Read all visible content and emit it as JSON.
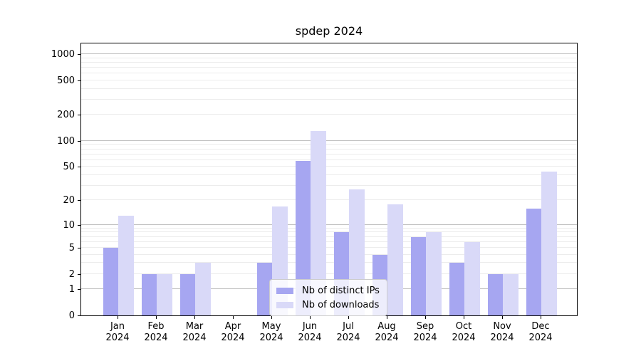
{
  "title": "spdep 2024",
  "colors": {
    "ips_bar": "#a6a6f1",
    "downloads_bar": "#d9d9f8",
    "major_grid": "#c0c0c0",
    "minor_grid": "#ececec",
    "axis": "#000000",
    "legend_border": "#cccccc"
  },
  "chart_data": {
    "type": "bar",
    "title": "spdep 2024",
    "categories": [
      "Jan",
      "Feb",
      "Mar",
      "Apr",
      "May",
      "Jun",
      "Jul",
      "Aug",
      "Sep",
      "Oct",
      "Nov",
      "Dec"
    ],
    "category_year": "2024",
    "series": [
      {
        "name": "Nb of distinct IPs",
        "values": [
          5,
          2,
          2,
          0,
          3,
          58,
          8,
          4,
          7,
          3,
          2,
          16
        ]
      },
      {
        "name": "Nb of downloads",
        "values": [
          13,
          2,
          3,
          0,
          17,
          130,
          27,
          18,
          8,
          6,
          2,
          44
        ]
      }
    ],
    "xlabel": "",
    "ylabel": "",
    "yscale": "log1p",
    "yticks": [
      0,
      1,
      2,
      5,
      10,
      20,
      50,
      100,
      200,
      500,
      1000
    ],
    "ylim": [
      0,
      1330
    ],
    "grid": true,
    "legend_position": "lower center"
  }
}
